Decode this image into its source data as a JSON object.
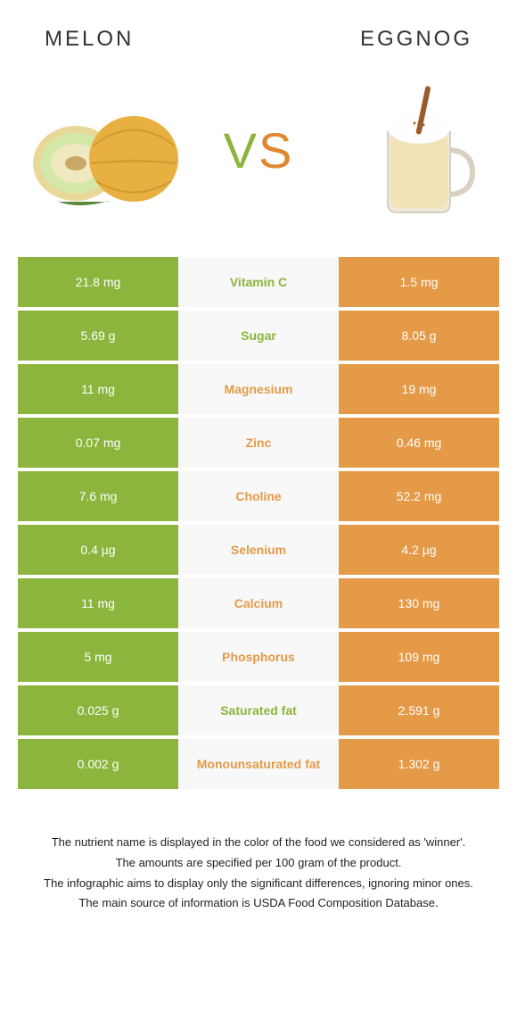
{
  "header": {
    "left_title": "MELON",
    "right_title": "EGGNOG"
  },
  "vs": {
    "v": "V",
    "s": "S"
  },
  "colors": {
    "green": "#8bb53c",
    "orange": "#e49a47",
    "mid_bg": "#f8f8f8"
  },
  "rows": [
    {
      "left": "21.8 mg",
      "label": "Vitamin C",
      "right": "1.5 mg",
      "winner": "left"
    },
    {
      "left": "5.69 g",
      "label": "Sugar",
      "right": "8.05 g",
      "winner": "left"
    },
    {
      "left": "11 mg",
      "label": "Magnesium",
      "right": "19 mg",
      "winner": "right"
    },
    {
      "left": "0.07 mg",
      "label": "Zinc",
      "right": "0.46 mg",
      "winner": "right"
    },
    {
      "left": "7.6 mg",
      "label": "Choline",
      "right": "52.2 mg",
      "winner": "right"
    },
    {
      "left": "0.4 µg",
      "label": "Selenium",
      "right": "4.2 µg",
      "winner": "right"
    },
    {
      "left": "11 mg",
      "label": "Calcium",
      "right": "130 mg",
      "winner": "right"
    },
    {
      "left": "5 mg",
      "label": "Phosphorus",
      "right": "109 mg",
      "winner": "right"
    },
    {
      "left": "0.025 g",
      "label": "Saturated fat",
      "right": "2.591 g",
      "winner": "left"
    },
    {
      "left": "0.002 g",
      "label": "Monounsaturated fat",
      "right": "1.302 g",
      "winner": "right"
    }
  ],
  "footer": {
    "line1": "The nutrient name is displayed in the color of the food we considered as 'winner'.",
    "line2": "The amounts are specified per 100 gram of the product.",
    "line3": "The infographic aims to display only the significant differences, ignoring minor ones.",
    "line4": "The main source of information is USDA Food Composition Database."
  }
}
